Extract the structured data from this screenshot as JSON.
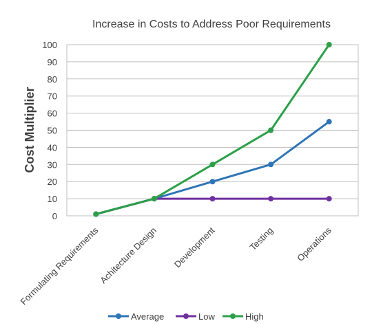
{
  "chart_data": {
    "type": "line",
    "title": "Increase in Costs to Address Poor Requirements",
    "ylabel": "Cost Multiplier",
    "xlabel": "",
    "categories": [
      "Formulating Requirements",
      "Achitecture Design",
      "Development",
      "Testing",
      "Operations"
    ],
    "ylim": [
      0,
      100
    ],
    "yticks": [
      0,
      10,
      20,
      30,
      40,
      50,
      60,
      70,
      80,
      90,
      100
    ],
    "grid": true,
    "legend": "bottom",
    "series": [
      {
        "name": "Average",
        "color": "#2e75b6",
        "values": [
          1,
          10,
          20,
          30,
          55
        ]
      },
      {
        "name": "Low",
        "color": "#7030a0",
        "values": [
          1,
          10,
          10,
          10,
          10
        ]
      },
      {
        "name": "High",
        "color": "#2ca048",
        "values": [
          1,
          10,
          30,
          50,
          100
        ]
      }
    ]
  }
}
